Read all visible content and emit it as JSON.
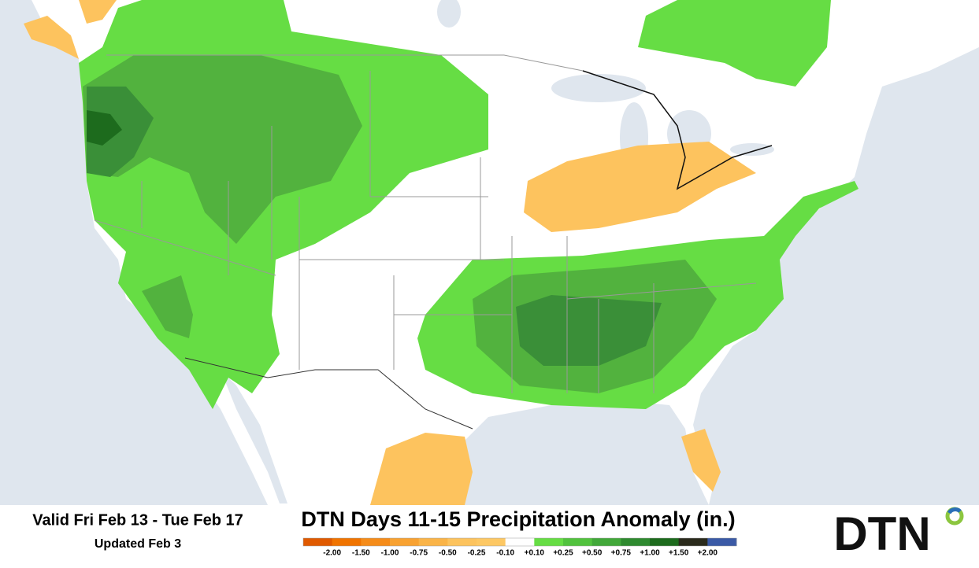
{
  "footer": {
    "valid": "Valid Fri Feb 13 - Tue Feb 17",
    "updated": "Updated Feb 3",
    "title": "DTN Days 11-15 Precipitation Anomaly (in.)",
    "logo": "DTN"
  },
  "legend": {
    "labels": [
      "-2.00",
      "-1.50",
      "-1.00",
      "-0.75",
      "-0.50",
      "-0.25",
      "-0.10",
      "+0.10",
      "+0.25",
      "+0.50",
      "+0.75",
      "+1.00",
      "+1.50",
      "+2.00"
    ],
    "colors": [
      "#e05a00",
      "#f07400",
      "#f58c1a",
      "#f8a232",
      "#fab448",
      "#fcc35e",
      "#fdc864",
      "#ffffff",
      "#66dd44",
      "#52c23e",
      "#42a83a",
      "#2f8a30",
      "#1d6b1d",
      "#2b2b1c",
      "#3b5aa6"
    ]
  }
}
